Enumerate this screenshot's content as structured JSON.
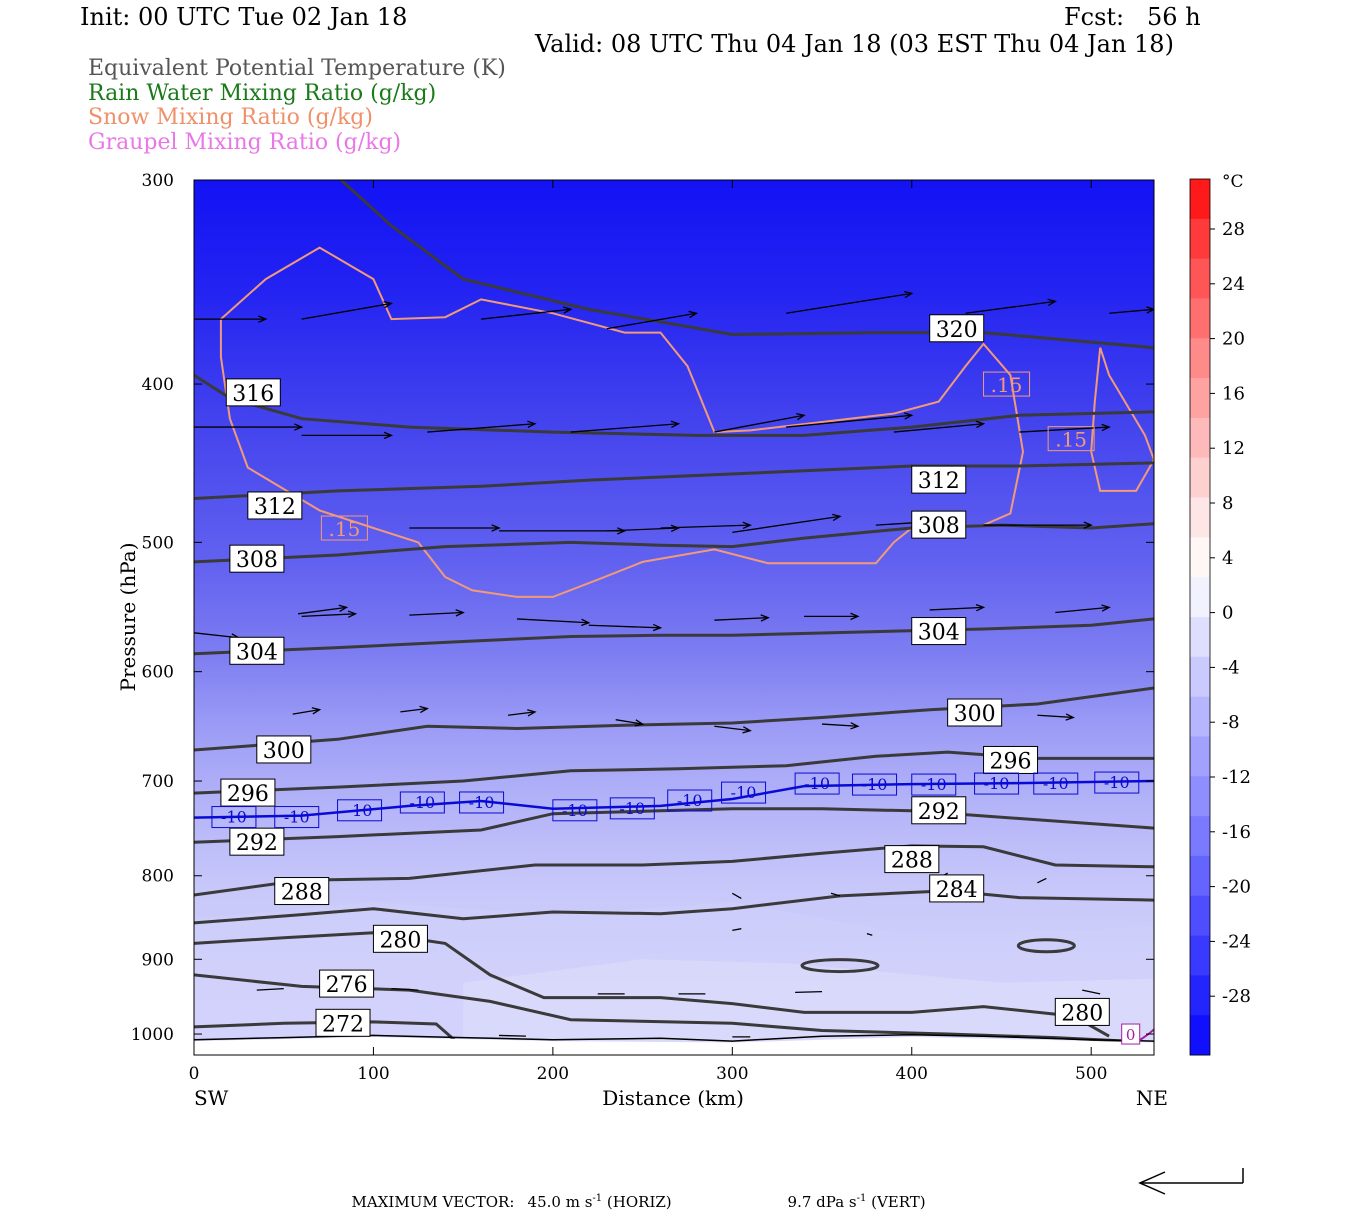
{
  "header": {
    "init": "Init: 00 UTC Tue 02 Jan 18",
    "fcst": "Fcst:   56 h",
    "valid": "Valid: 08 UTC Thu 04 Jan 18 (03 EST Thu 04 Jan 18)"
  },
  "variables": [
    {
      "label": "Equivalent Potential Temperature (K)",
      "color": "#555555"
    },
    {
      "label": "Rain Water Mixing Ratio (g/kg)",
      "color": "#1a7a1a"
    },
    {
      "label": "Snow Mixing Ratio (g/kg)",
      "color": "#f0906a"
    },
    {
      "label": "Graupel Mixing Ratio (g/kg)",
      "color": "#e878e8"
    }
  ],
  "footer": {
    "max_vector_label": "MAXIMUM VECTOR:",
    "horiz": "45.0 m s",
    "horiz_sup": "-1",
    "horiz_unit": " (HORIZ)",
    "vert": "9.7 dPa s",
    "vert_sup": "-1",
    "vert_unit": " (VERT)"
  },
  "chart_data": {
    "type": "contour-cross-section",
    "xlabel": "Distance (km)",
    "ylabel": "Pressure (hPa)",
    "x_ticks": [
      0,
      100,
      200,
      300,
      400,
      500
    ],
    "y_ticks": [
      300,
      400,
      500,
      600,
      700,
      800,
      900,
      1000
    ],
    "xlim": [
      0,
      535
    ],
    "ylim": [
      300,
      1030
    ],
    "y_scale": "log",
    "x_end_labels": {
      "left": "SW",
      "right": "NE"
    },
    "colorbar": {
      "unit": "°C",
      "tick_labels": [
        "28",
        "24",
        "20",
        "16",
        "12",
        "8",
        "4",
        "0",
        "-4",
        "-8",
        "-12",
        "-16",
        "-20",
        "-24",
        "-28"
      ],
      "colors": [
        "#fe1a1a",
        "#fe3a3a",
        "#fe5656",
        "#fe7070",
        "#fe8a8a",
        "#fea2a2",
        "#febaba",
        "#fed0d0",
        "#fee6e6",
        "#fff6f6",
        "#f2f2fe",
        "#dedefe",
        "#cacafe",
        "#b6b6fe",
        "#a2a2fe",
        "#8e8efe",
        "#7a7afe",
        "#6464fe",
        "#4e4efe",
        "#3a3afe",
        "#2424fe",
        "#1010fe"
      ]
    },
    "theta_e_contours": [
      {
        "label": "272",
        "points": [
          [
            0,
            990
          ],
          [
            50,
            985
          ],
          [
            100,
            983
          ],
          [
            135,
            986
          ],
          [
            145,
            1008
          ]
        ]
      },
      {
        "label": "276",
        "points": [
          [
            0,
            920
          ],
          [
            60,
            935
          ],
          [
            120,
            940
          ],
          [
            165,
            955
          ],
          [
            210,
            980
          ],
          [
            300,
            985
          ],
          [
            350,
            995
          ],
          [
            420,
            1000
          ],
          [
            480,
            1005
          ],
          [
            520,
            1010
          ]
        ]
      },
      {
        "label": "280",
        "points": [
          [
            0,
            880
          ],
          [
            50,
            873
          ],
          [
            100,
            867
          ],
          [
            140,
            880
          ],
          [
            165,
            920
          ],
          [
            195,
            950
          ],
          [
            260,
            950
          ],
          [
            300,
            958
          ],
          [
            340,
            970
          ],
          [
            400,
            970
          ],
          [
            440,
            962
          ],
          [
            490,
            975
          ],
          [
            510,
            1003
          ]
        ]
      },
      {
        "label": "284",
        "points": [
          [
            0,
            855
          ],
          [
            60,
            845
          ],
          [
            100,
            838
          ],
          [
            150,
            850
          ],
          [
            200,
            842
          ],
          [
            260,
            844
          ],
          [
            300,
            838
          ],
          [
            360,
            823
          ],
          [
            420,
            817
          ],
          [
            460,
            825
          ],
          [
            535,
            828
          ]
        ]
      },
      {
        "label": "288",
        "points": [
          [
            0,
            822
          ],
          [
            60,
            805
          ],
          [
            120,
            803
          ],
          [
            190,
            788
          ],
          [
            250,
            788
          ],
          [
            300,
            784
          ],
          [
            350,
            775
          ],
          [
            400,
            767
          ],
          [
            440,
            768
          ],
          [
            480,
            788
          ],
          [
            535,
            790
          ]
        ]
      },
      {
        "label": "292",
        "points": [
          [
            0,
            763
          ],
          [
            80,
            757
          ],
          [
            160,
            750
          ],
          [
            200,
            733
          ],
          [
            260,
            730
          ],
          [
            300,
            728
          ],
          [
            350,
            728
          ],
          [
            400,
            730
          ],
          [
            460,
            738
          ],
          [
            535,
            748
          ]
        ]
      },
      {
        "label": "296",
        "points": [
          [
            0,
            712
          ],
          [
            80,
            706
          ],
          [
            150,
            700
          ],
          [
            210,
            690
          ],
          [
            270,
            688
          ],
          [
            330,
            685
          ],
          [
            380,
            676
          ],
          [
            420,
            672
          ],
          [
            470,
            678
          ],
          [
            535,
            678
          ]
        ]
      },
      {
        "label": "300",
        "points": [
          [
            0,
            670
          ],
          [
            80,
            660
          ],
          [
            130,
            648
          ],
          [
            180,
            650
          ],
          [
            240,
            647
          ],
          [
            300,
            645
          ],
          [
            350,
            640
          ],
          [
            410,
            633
          ],
          [
            470,
            628
          ],
          [
            535,
            614
          ]
        ]
      },
      {
        "label": "304",
        "points": [
          [
            0,
            585
          ],
          [
            80,
            580
          ],
          [
            150,
            575
          ],
          [
            210,
            571
          ],
          [
            260,
            570
          ],
          [
            300,
            570
          ],
          [
            380,
            567
          ],
          [
            440,
            565
          ],
          [
            500,
            562
          ],
          [
            535,
            557
          ]
        ]
      },
      {
        "label": "308",
        "points": [
          [
            0,
            514
          ],
          [
            80,
            509
          ],
          [
            140,
            503
          ],
          [
            210,
            500
          ],
          [
            260,
            502
          ],
          [
            300,
            503
          ],
          [
            340,
            497
          ],
          [
            400,
            490
          ],
          [
            450,
            488
          ],
          [
            500,
            490
          ],
          [
            535,
            487
          ]
        ]
      },
      {
        "label": "312",
        "points": [
          [
            0,
            470
          ],
          [
            80,
            465
          ],
          [
            160,
            462
          ],
          [
            220,
            458
          ],
          [
            280,
            455
          ],
          [
            340,
            452
          ],
          [
            400,
            449
          ],
          [
            460,
            449
          ],
          [
            535,
            447
          ]
        ]
      },
      {
        "label": "316",
        "points": [
          [
            0,
            395
          ],
          [
            20,
            408
          ],
          [
            60,
            420
          ],
          [
            120,
            425
          ],
          [
            200,
            428
          ],
          [
            280,
            430
          ],
          [
            340,
            430
          ],
          [
            400,
            425
          ],
          [
            460,
            418
          ],
          [
            535,
            416
          ]
        ]
      },
      {
        "label": "320",
        "points": [
          [
            82,
            300
          ],
          [
            110,
            320
          ],
          [
            150,
            345
          ],
          [
            220,
            360
          ],
          [
            300,
            373
          ],
          [
            380,
            372
          ],
          [
            440,
            372
          ],
          [
            500,
            377
          ],
          [
            535,
            380
          ]
        ]
      }
    ],
    "isotherm_minus10": {
      "label": "-10",
      "points": [
        [
          0,
          737
        ],
        [
          60,
          735
        ],
        [
          120,
          725
        ],
        [
          160,
          720
        ],
        [
          200,
          728
        ],
        [
          260,
          725
        ],
        [
          300,
          718
        ],
        [
          340,
          705
        ],
        [
          400,
          703
        ],
        [
          460,
          702
        ],
        [
          535,
          700
        ]
      ]
    },
    "snow_contour": {
      "label": ".15",
      "segments": [
        [
          [
            15,
            365
          ],
          [
            40,
            345
          ],
          [
            70,
            330
          ],
          [
            100,
            345
          ],
          [
            110,
            365
          ],
          [
            140,
            364
          ],
          [
            160,
            355
          ],
          [
            200,
            362
          ],
          [
            240,
            372
          ],
          [
            260,
            372
          ],
          [
            275,
            390
          ],
          [
            290,
            428
          ],
          [
            310,
            427
          ],
          [
            350,
            422
          ],
          [
            390,
            417
          ],
          [
            415,
            410
          ],
          [
            430,
            390
          ],
          [
            440,
            378
          ],
          [
            455,
            395
          ],
          [
            462,
            440
          ],
          [
            455,
            480
          ],
          [
            440,
            488
          ],
          [
            400,
            490
          ],
          [
            390,
            500
          ],
          [
            380,
            515
          ],
          [
            340,
            515
          ],
          [
            320,
            515
          ],
          [
            290,
            505
          ],
          [
            250,
            514
          ],
          [
            225,
            527
          ],
          [
            200,
            540
          ],
          [
            180,
            540
          ],
          [
            155,
            535
          ],
          [
            140,
            525
          ],
          [
            125,
            500
          ],
          [
            100,
            490
          ],
          [
            70,
            478
          ],
          [
            30,
            450
          ],
          [
            20,
            420
          ],
          [
            15,
            385
          ],
          [
            15,
            365
          ]
        ],
        [
          [
            500,
            440
          ],
          [
            502,
            410
          ],
          [
            505,
            380
          ],
          [
            510,
            395
          ],
          [
            530,
            430
          ],
          [
            535,
            445
          ],
          [
            525,
            465
          ],
          [
            505,
            465
          ],
          [
            500,
            440
          ]
        ]
      ]
    },
    "graupel_label": "0"
  }
}
